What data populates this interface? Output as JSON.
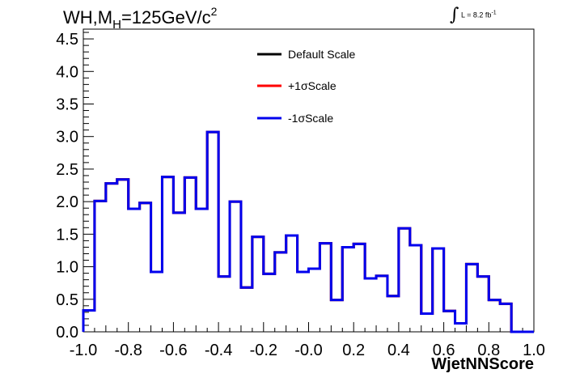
{
  "header": {
    "process": "WH,M",
    "subscript": "H",
    "mass": "=125GeV/c",
    "power": "2"
  },
  "luminosity": {
    "integral": "∫",
    "text": "L = 8.2 fb",
    "power": "-1"
  },
  "chart_data": {
    "type": "line",
    "xlabel": "WjetNNScore",
    "ylabel": "",
    "xlim": [
      -1.0,
      1.0
    ],
    "ylim": [
      0,
      4.65
    ],
    "x_ticks": [
      "-1.0",
      "-0.8",
      "-0.6",
      "-0.4",
      "-0.2",
      "-0.0",
      "0.2",
      "0.4",
      "0.6",
      "0.8",
      "1.0"
    ],
    "y_ticks": [
      "0.0",
      "0.5",
      "1.0",
      "1.5",
      "2.0",
      "2.5",
      "3.0",
      "3.5",
      "4.0",
      "4.5"
    ],
    "grid": false,
    "legend_position": "top-center",
    "bin_edges": [
      -1.0,
      -0.95,
      -0.9,
      -0.85,
      -0.8,
      -0.75,
      -0.7,
      -0.65,
      -0.6,
      -0.55,
      -0.5,
      -0.45,
      -0.4,
      -0.35,
      -0.3,
      -0.25,
      -0.2,
      -0.15,
      -0.1,
      -0.05,
      0.0,
      0.05,
      0.1,
      0.15,
      0.2,
      0.25,
      0.3,
      0.35,
      0.4,
      0.45,
      0.5,
      0.55,
      0.6,
      0.65,
      0.7,
      0.75,
      0.8,
      0.85,
      0.9,
      0.95,
      1.0
    ],
    "series": [
      {
        "name": "Default Scale",
        "color": "#000000",
        "values": [
          0.33,
          2.01,
          2.28,
          2.34,
          1.89,
          1.98,
          0.92,
          2.38,
          1.83,
          2.37,
          1.89,
          3.07,
          0.85,
          2.0,
          0.68,
          1.46,
          0.89,
          1.22,
          1.48,
          0.92,
          0.97,
          1.36,
          0.49,
          1.3,
          1.35,
          0.82,
          0.86,
          0.55,
          1.59,
          1.33,
          0.28,
          1.28,
          0.32,
          0.13,
          1.04,
          0.85,
          0.49,
          0.43,
          0.0,
          0.0
        ]
      },
      {
        "name": "+1σScale",
        "color": "#ff0000",
        "values": [
          0.33,
          2.01,
          2.28,
          2.34,
          1.89,
          1.98,
          0.92,
          2.38,
          1.83,
          2.37,
          1.89,
          3.07,
          0.85,
          2.0,
          0.68,
          1.46,
          0.89,
          1.22,
          1.48,
          0.92,
          0.97,
          1.36,
          0.49,
          1.3,
          1.35,
          0.82,
          0.86,
          0.55,
          1.59,
          1.33,
          0.28,
          1.28,
          0.32,
          0.13,
          1.04,
          0.85,
          0.49,
          0.43,
          0.0,
          0.0
        ]
      },
      {
        "name": "-1σScale",
        "color": "#0000ee",
        "values": [
          0.33,
          2.01,
          2.28,
          2.34,
          1.89,
          1.98,
          0.92,
          2.38,
          1.83,
          2.37,
          1.89,
          3.07,
          0.85,
          2.0,
          0.68,
          1.46,
          0.89,
          1.22,
          1.48,
          0.92,
          0.97,
          1.36,
          0.49,
          1.3,
          1.35,
          0.82,
          0.86,
          0.55,
          1.59,
          1.33,
          0.28,
          1.28,
          0.32,
          0.13,
          1.04,
          0.85,
          0.49,
          0.43,
          0.0,
          0.0
        ]
      }
    ]
  }
}
